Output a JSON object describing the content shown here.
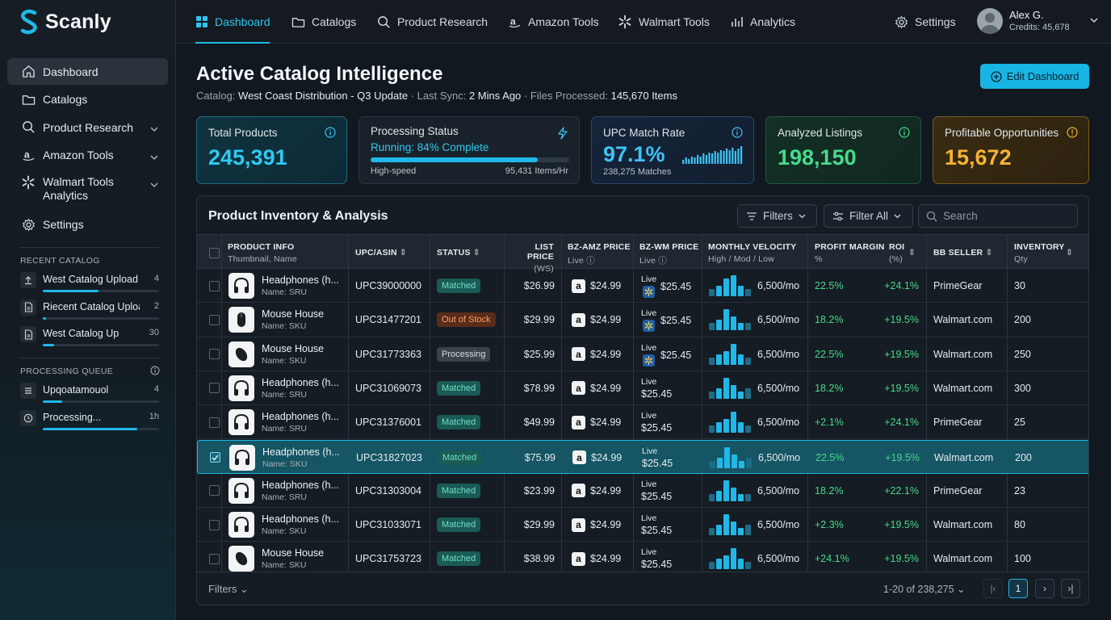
{
  "app": {
    "name": "Scanly"
  },
  "sidebar": {
    "nav": [
      {
        "label": "Dashboard",
        "icon": "home-icon"
      },
      {
        "label": "Catalogs",
        "icon": "folder-icon"
      },
      {
        "label": "Product Research",
        "icon": "search-icon"
      },
      {
        "label": "Amazon Tools",
        "icon": "amazon-icon"
      },
      {
        "label": "Walmart Tools\nAnalytics",
        "icon": "walmart-spark-icon"
      },
      {
        "label": "Settings",
        "icon": "gear-icon"
      }
    ],
    "recent_title": "RECENT CATALOG",
    "recent": [
      {
        "name": "West Catalog Upload",
        "count": "4",
        "progress": 0.48
      },
      {
        "name": "Riecent Catalog Uploa...",
        "count": "2",
        "progress": 0.03
      },
      {
        "name": "West Catalog Up",
        "count": "30",
        "progress": 0.1
      }
    ],
    "queue_title": "PROCESSING QUEUE",
    "queue": [
      {
        "name": "Upqoatamouol",
        "count": "4",
        "progress": 0.17
      },
      {
        "name": "Processing...",
        "count": "1h",
        "progress": 0.81
      }
    ]
  },
  "topnav": {
    "items": [
      {
        "label": "Dashboard",
        "icon": "grid-icon"
      },
      {
        "label": "Catalogs",
        "icon": "folder-icon"
      },
      {
        "label": "Product Research",
        "icon": "search-icon"
      },
      {
        "label": "Amazon Tools",
        "icon": "amazon-icon"
      },
      {
        "label": "Walmart Tools",
        "icon": "walmart-spark-icon"
      },
      {
        "label": "Analytics",
        "icon": "bar-chart-icon"
      }
    ],
    "settings": "Settings",
    "user_name": "Alex G.",
    "credits": "Credits: 45,678"
  },
  "header": {
    "title": "Active Catalog Intelligence",
    "catalog_label": "Catalog:",
    "catalog_value": "West Coast Distribution - Q3 Update",
    "sync_label": "Last Sync:",
    "sync_value": "2 Mins Ago",
    "files_label": "Files Processed:",
    "files_value": "145,670 Items",
    "edit_button": "Edit Dashboard"
  },
  "cards": {
    "total": {
      "label": "Total Products",
      "value": "245,391"
    },
    "processing": {
      "label": "Processing Status",
      "status": "Running: 84% Complete",
      "progress": 0.84,
      "mode": "High-speed",
      "rate": "95,431 Items/Hr"
    },
    "upc": {
      "label": "UPC Match Rate",
      "value": "97.1%",
      "sub": "238,275 Matches",
      "sparkline": [
        3,
        5,
        4,
        6,
        5,
        7,
        6,
        8,
        7,
        9,
        8,
        10,
        9,
        11,
        10,
        12,
        11,
        13,
        10,
        12,
        14
      ]
    },
    "analyzed": {
      "label": "Analyzed Listings",
      "value": "198,150"
    },
    "profitable": {
      "label": "Profitable Opportunities",
      "value": "15,672"
    }
  },
  "table": {
    "title": "Product Inventory & Analysis",
    "filters_button": "Filters",
    "filter_all": "Filter All",
    "search_placeholder": "Search",
    "columns": {
      "product": "PRODUCT INFO",
      "product_sub": "Thumbnail, Name",
      "upc": "UPC/ASIN",
      "status": "STATUS",
      "list_price": "LIST PRICE",
      "list_price_sub": "(WS)",
      "amz": "BZ-AMZ PRICE",
      "amz_sub": "Live",
      "wm": "BZ-WM PRICE",
      "wm_sub": "Live",
      "velocity": "MONTHLY VELOCITY",
      "velocity_sub": "High / Mod / Low",
      "margin": "PROFIT MARGIN",
      "margin_sub": "%",
      "roi": "ROI",
      "roi_sub": "(%)",
      "bb": "BB SELLER",
      "inventory": "INVENTORY",
      "inventory_sub": "Qty"
    },
    "rows": [
      {
        "type": "headphones",
        "name": "Headphones (h...",
        "sku": "Name: SRU",
        "upc": "UPC39000000",
        "status": "Matched",
        "status_kind": "m",
        "list": "$26.99",
        "amz": "$24.99",
        "wm_live": "Live",
        "wm": "$25.45",
        "wm_icon": true,
        "vel": [
          2,
          3,
          5,
          6,
          3,
          2
        ],
        "vel_text": "6,500/mo",
        "margin": "22.5%",
        "roi": "+24.1%",
        "bb": "PrimeGear",
        "inv": "30",
        "selected": false
      },
      {
        "type": "mouse",
        "name": "Mouse House",
        "sku": "Name: SKU",
        "upc": "UPC31477201",
        "status": "Out of Stock",
        "status_kind": "o",
        "list": "$29.99",
        "amz": "$24.99",
        "wm_live": "Live",
        "wm": "$25.45",
        "wm_icon": true,
        "vel": [
          2,
          3,
          6,
          4,
          2,
          2
        ],
        "vel_text": "6,500/mo",
        "margin": "18.2%",
        "roi": "+19.5%",
        "bb": "Walmart.com",
        "inv": "200",
        "selected": false
      },
      {
        "type": "mouse2",
        "name": "Mouse House",
        "sku": "Name: SKU",
        "upc": "UPC31773363",
        "status": "Processing",
        "status_kind": "p",
        "list": "$25.99",
        "amz": "$24.99",
        "wm_live": "Live",
        "wm": "$25.45",
        "wm_icon": true,
        "vel": [
          2,
          3,
          4,
          6,
          3,
          2
        ],
        "vel_text": "6,500/mo",
        "margin": "22.5%",
        "roi": "+19.5%",
        "bb": "Walmart.com",
        "inv": "250",
        "selected": false
      },
      {
        "type": "headphones",
        "name": "Headphones (h...",
        "sku": "Name: SRU",
        "upc": "UPC31069073",
        "status": "Matched",
        "status_kind": "m",
        "list": "$78.99",
        "amz": "$24.99",
        "wm_live": "Live",
        "wm": "$25.45",
        "wm_icon": false,
        "vel": [
          2,
          3,
          6,
          4,
          2,
          3
        ],
        "vel_text": "6,500/mo",
        "margin": "18.2%",
        "roi": "+19.5%",
        "bb": "Walmart.com",
        "inv": "300",
        "selected": false
      },
      {
        "type": "headphones",
        "name": "Headphones (h...",
        "sku": "Name: SRU",
        "upc": "UPC31376001",
        "status": "Matched",
        "status_kind": "m",
        "list": "$49.99",
        "amz": "$24.99",
        "wm_live": "Live",
        "wm": "$25.45",
        "wm_icon": false,
        "vel": [
          2,
          3,
          4,
          6,
          3,
          2
        ],
        "vel_text": "6,500/mo",
        "margin": "+2.1%",
        "roi": "+24.1%",
        "bb": "PrimeGear",
        "inv": "25",
        "selected": false
      },
      {
        "type": "headphones",
        "name": "Headphones (h...",
        "sku": "Name: SKU",
        "upc": "UPC31827023",
        "status": "Matched",
        "status_kind": "m",
        "list": "$75.99",
        "amz": "$24.99",
        "wm_live": "Live",
        "wm": "$25.45",
        "wm_icon": false,
        "vel": [
          2,
          3,
          6,
          4,
          2,
          3
        ],
        "vel_text": "6,500/mo",
        "margin": "22.5%",
        "roi": "+19.5%",
        "bb": "Walmart.com",
        "inv": "200",
        "selected": true
      },
      {
        "type": "headphones",
        "name": "Headphones (h...",
        "sku": "Name: SRU",
        "upc": "UPC31303004",
        "status": "Matched",
        "status_kind": "m",
        "list": "$23.99",
        "amz": "$24.99",
        "wm_live": "Live",
        "wm": "$25.45",
        "wm_icon": false,
        "vel": [
          2,
          3,
          6,
          4,
          2,
          2
        ],
        "vel_text": "6,500/mo",
        "margin": "18.2%",
        "roi": "+22.1%",
        "bb": "PrimeGear",
        "inv": "23",
        "selected": false
      },
      {
        "type": "headphones",
        "name": "Headphones (h...",
        "sku": "Name: SKU",
        "upc": "UPC31033071",
        "status": "Matched",
        "status_kind": "m",
        "list": "$29.99",
        "amz": "$24.99",
        "wm_live": "Live",
        "wm": "$25.45",
        "wm_icon": false,
        "vel": [
          2,
          3,
          6,
          4,
          2,
          3
        ],
        "vel_text": "6,500/mo",
        "margin": "+2.3%",
        "roi": "+19.5%",
        "bb": "Walmart.com",
        "inv": "80",
        "selected": false
      },
      {
        "type": "mouse2",
        "name": "Mouse House",
        "sku": "Name: SKU",
        "upc": "UPC31753723",
        "status": "Matched",
        "status_kind": "m",
        "list": "$38.99",
        "amz": "$24.99",
        "wm_live": "Live",
        "wm": "$25.45",
        "wm_icon": false,
        "vel": [
          2,
          3,
          4,
          6,
          3,
          2
        ],
        "vel_text": "6,500/mo",
        "margin": "+24.1%",
        "roi": "+19.5%",
        "bb": "Walmart.com",
        "inv": "100",
        "selected": false
      }
    ],
    "footer_filters": "Filters",
    "pagination": "1-20 of 238,275",
    "current_page": "1"
  },
  "colors": {
    "accent": "#1fb8e8",
    "positive": "#48d98a",
    "warning": "#f6b334"
  }
}
